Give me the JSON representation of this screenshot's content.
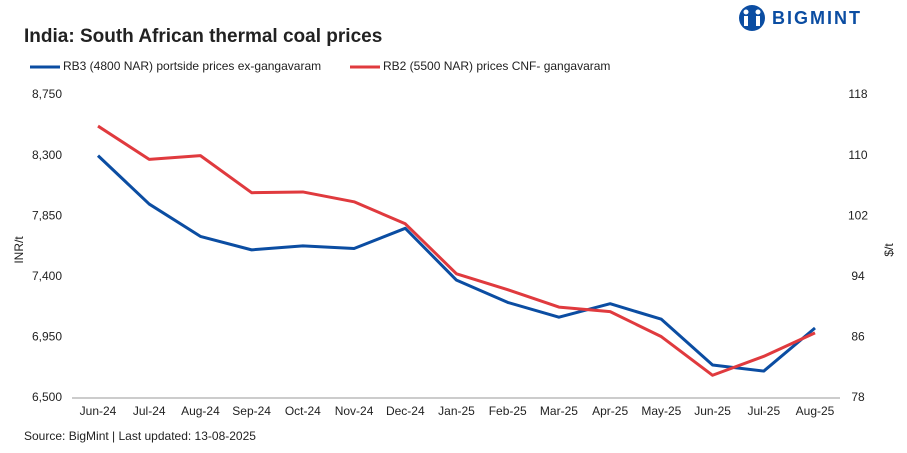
{
  "logo": "BIGMINT",
  "chart_data": {
    "type": "line",
    "title": "India: South African thermal coal prices",
    "source": "Source: BigMint | Last updated: 13-08-2025",
    "ylabel": "INR/t",
    "y2label": "$/t",
    "categories": [
      "Jun-24",
      "Jul-24",
      "Aug-24",
      "Sep-24",
      "Oct-24",
      "Nov-24",
      "Dec-24",
      "Jan-25",
      "Feb-25",
      "Mar-25",
      "Apr-25",
      "May-25",
      "Jun-25",
      "Jul-25",
      "Aug-25"
    ],
    "series": [
      {
        "name": "RB3 (4800 NAR) portside prices ex-gangavaram",
        "color": "#0b4da2",
        "values": [
          8300,
          7940,
          7700,
          7600,
          7630,
          7610,
          7760,
          7375,
          7210,
          7100,
          7200,
          7085,
          6745,
          6700,
          7020
        ]
      },
      {
        "name": "RB2 (5500 NAR) prices CNF- gangavaram",
        "color": "#e03a3e",
        "axis": "y2",
        "values": [
          113.9,
          109.5,
          110,
          105.1,
          105.2,
          103.9,
          101,
          94.4,
          92.3,
          90,
          89.4,
          86.1,
          81,
          83.5,
          86.6
        ]
      }
    ],
    "ylim": [
      6500,
      8750
    ],
    "yticks": [
      {
        "value": 6500,
        "label": "6,500"
      },
      {
        "value": 6950,
        "label": "6,950"
      },
      {
        "value": 7400,
        "label": "7,400"
      },
      {
        "value": 7850,
        "label": "7,850"
      },
      {
        "value": 8300,
        "label": "8,300"
      },
      {
        "value": 8750,
        "label": "8,750"
      }
    ],
    "y2lim": [
      78,
      118
    ],
    "y2ticks": [
      78,
      86,
      94,
      102,
      110,
      118
    ]
  }
}
